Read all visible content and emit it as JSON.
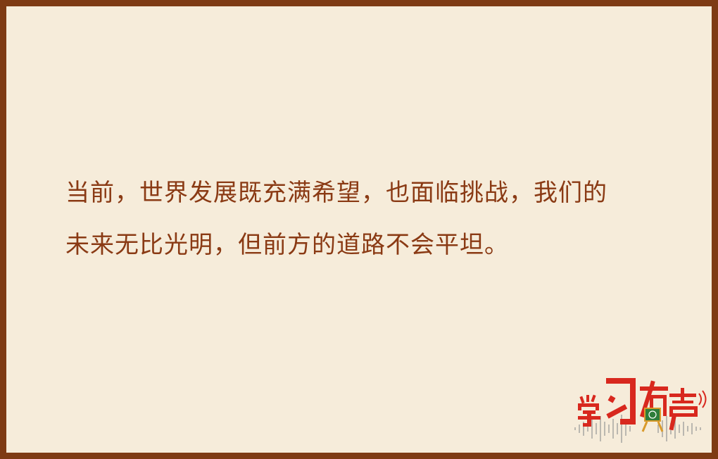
{
  "quote": {
    "line1": "当前，世界发展既充满希望，也面临挑战，我们的",
    "line2": "未来无比光明，但前方的道路不会平坦。"
  },
  "logo": {
    "text": "学习有声",
    "icon": "chalkboard-icon",
    "colors": {
      "primary": "#d8281e",
      "board": "#2e7d3a",
      "easel": "#d99a2b",
      "wave": "#9a9a9a"
    }
  },
  "colors": {
    "background": "#f6ecda",
    "border": "#7e3b14",
    "text": "#8a3a14"
  }
}
